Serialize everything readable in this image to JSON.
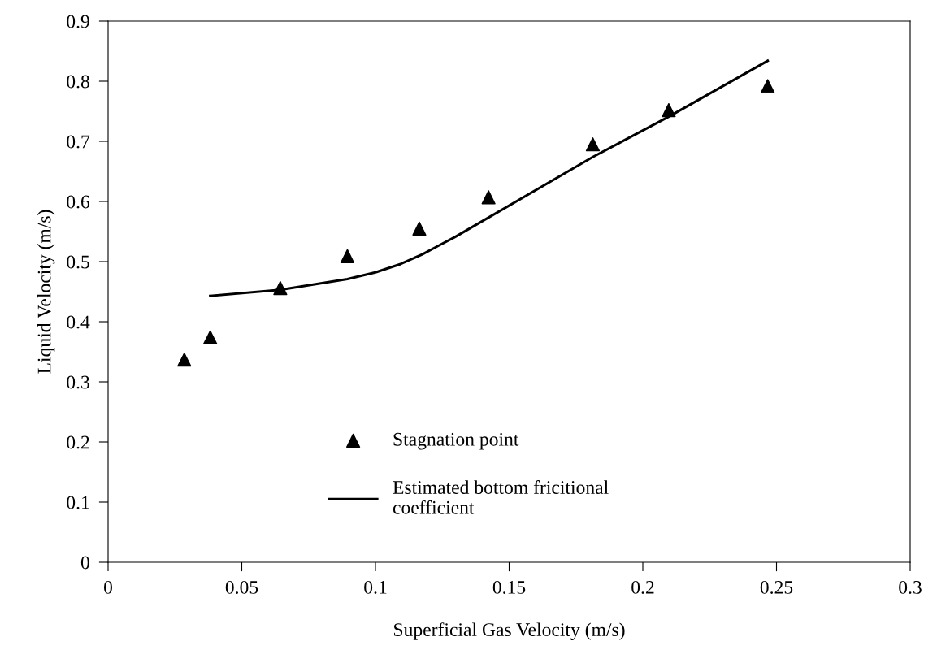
{
  "chart_data": {
    "type": "scatter",
    "xlabel": "Superficial Gas Velocity (m/s)",
    "ylabel": "Liquid Velocity (m/s)",
    "xlim": [
      0,
      0.3
    ],
    "ylim": [
      0,
      0.9
    ],
    "xticks": [
      0,
      0.05,
      0.1,
      0.15,
      0.2,
      0.25,
      0.3
    ],
    "yticks": [
      0,
      0.1,
      0.2,
      0.3,
      0.4,
      0.5,
      0.6,
      0.7,
      0.8,
      0.9
    ],
    "grid": false,
    "legend": "bottom",
    "series": [
      {
        "name": "Stagnation point",
        "marker": "triangle",
        "color": "#000000",
        "x": [
          0.0285,
          0.0382,
          0.0644,
          0.0895,
          0.1164,
          0.1423,
          0.1813,
          0.2097,
          0.2467
        ],
        "values": [
          0.337,
          0.374,
          0.456,
          0.509,
          0.555,
          0.607,
          0.695,
          0.752,
          0.792
        ]
      },
      {
        "name": "Estimated bottom fricitional\ncoefficient",
        "type": "line",
        "marker": "none",
        "line_style": "solid",
        "color": "#000000",
        "x": [
          0.0382,
          0.0644,
          0.0895,
          0.1,
          0.1094,
          0.1175,
          0.1234,
          0.1298,
          0.1813,
          0.2097,
          0.2467
        ],
        "values": [
          0.443,
          0.453,
          0.471,
          0.482,
          0.496,
          0.512,
          0.526,
          0.541,
          0.674,
          0.741,
          0.834
        ]
      }
    ]
  }
}
